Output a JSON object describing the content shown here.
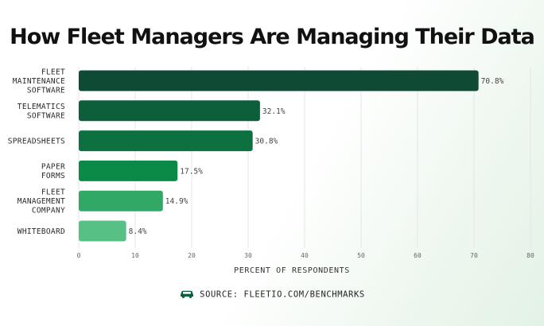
{
  "title": "How Fleet Managers Are Managing Their Data",
  "source_text": "SOURCE: FLEETIO.COM/BENCHMARKS",
  "icons": {
    "source": "car-icon"
  },
  "colors": {
    "background": "#ffffff",
    "gridline": "#e6e6e6",
    "bars": [
      "#0e4a34",
      "#0d5e3b",
      "#0c7040",
      "#0b8a47",
      "#32a866",
      "#57c185"
    ]
  },
  "chart_data": {
    "type": "bar",
    "orientation": "horizontal",
    "categories": [
      [
        "FLEET",
        "MAINTENANCE",
        "SOFTWARE"
      ],
      [
        "TELEMATICS",
        "SOFTWARE"
      ],
      [
        "SPREADSHEETS"
      ],
      [
        "PAPER",
        "FORMS"
      ],
      [
        "FLEET",
        "MANAGEMENT",
        "COMPANY"
      ],
      [
        "WHITEBOARD"
      ]
    ],
    "values": [
      70.8,
      32.1,
      30.8,
      17.5,
      14.9,
      8.4
    ],
    "value_labels": [
      "70.8%",
      "32.1%",
      "30.8%",
      "17.5%",
      "14.9%",
      "8.4%"
    ],
    "xlabel": "PERCENT OF RESPONDENTS",
    "ylabel": "",
    "xlim": [
      0,
      80
    ],
    "xticks": [
      "0",
      "10",
      "20",
      "30",
      "40",
      "50",
      "60",
      "70",
      "80"
    ],
    "grid": true,
    "legend": "none"
  }
}
